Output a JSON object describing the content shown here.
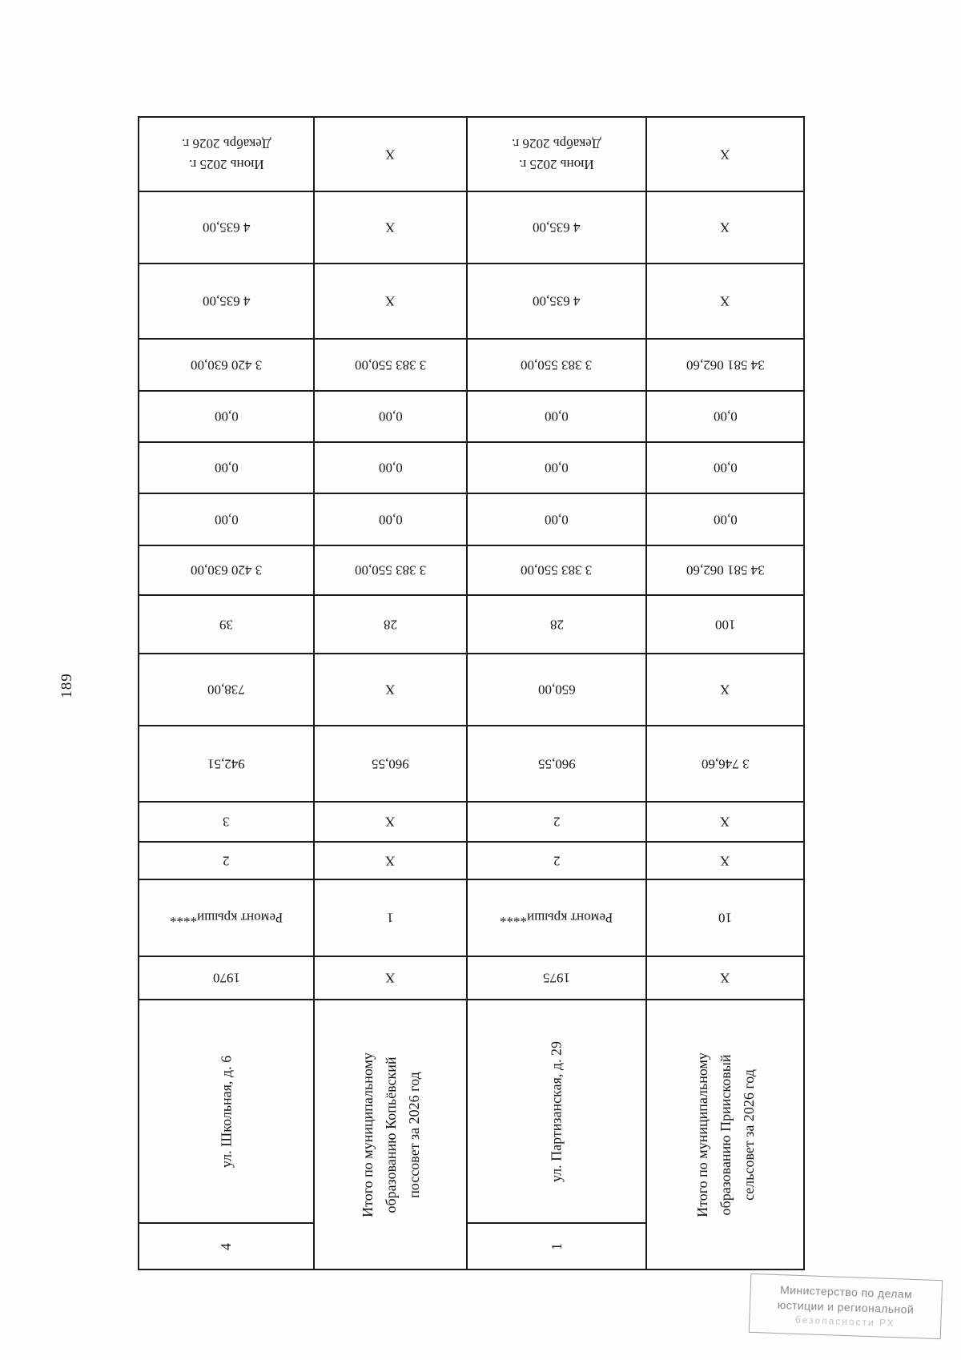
{
  "page": {
    "number": "189"
  },
  "colors": {
    "ink": "#1b1b1b",
    "stamp_gray": "#878787"
  },
  "table": {
    "orientation": "rotated-scan",
    "bands": [
      {
        "address": "ул. Школьная, д. 6",
        "row_num": "4",
        "cells": [
          "Июнь 2025 г.\nДекабрь 2026 г.",
          "4 635,00",
          "4 635,00",
          "3 420 630,00",
          "0,00",
          "0,00",
          "0,00",
          "3 420 630,00",
          "39",
          "738,00",
          "942,51",
          "3",
          "2",
          "Ремонт крыши****",
          "1970"
        ]
      },
      {
        "total_label": "Итого по муниципальному\nобразованию Копьёвский\nпоссовет за 2026 год",
        "cells": [
          "Х",
          "Х",
          "Х",
          "3 383 550,00",
          "0,00",
          "0,00",
          "0,00",
          "3 383 550,00",
          "28",
          "Х",
          "960,55",
          "Х",
          "Х",
          "1",
          "Х"
        ]
      },
      {
        "address": "ул. Партизанская, д. 29",
        "row_num": "1",
        "cells": [
          "Июнь 2025 г.\nДекабрь 2026 г.",
          "4 635,00",
          "4 635,00",
          "3 383 550,00",
          "0,00",
          "0,00",
          "0,00",
          "3 383 550,00",
          "28",
          "650,00",
          "960,55",
          "2",
          "2",
          "Ремонт крыши****",
          "1975"
        ]
      },
      {
        "total_label": "Итого по муниципальному\nобразованию Приисковый\nсельсовет за 2026 год",
        "cells": [
          "Х",
          "Х",
          "Х",
          "34 581 062,60",
          "0,00",
          "0,00",
          "0,00",
          "34 581 062,60",
          "100",
          "Х",
          "3 746,60",
          "Х",
          "Х",
          "10",
          "Х"
        ]
      }
    ]
  },
  "stamp": {
    "line1": "Министерство по делам",
    "line2": "юстиции и региональной",
    "line3": "безопасности РХ"
  }
}
